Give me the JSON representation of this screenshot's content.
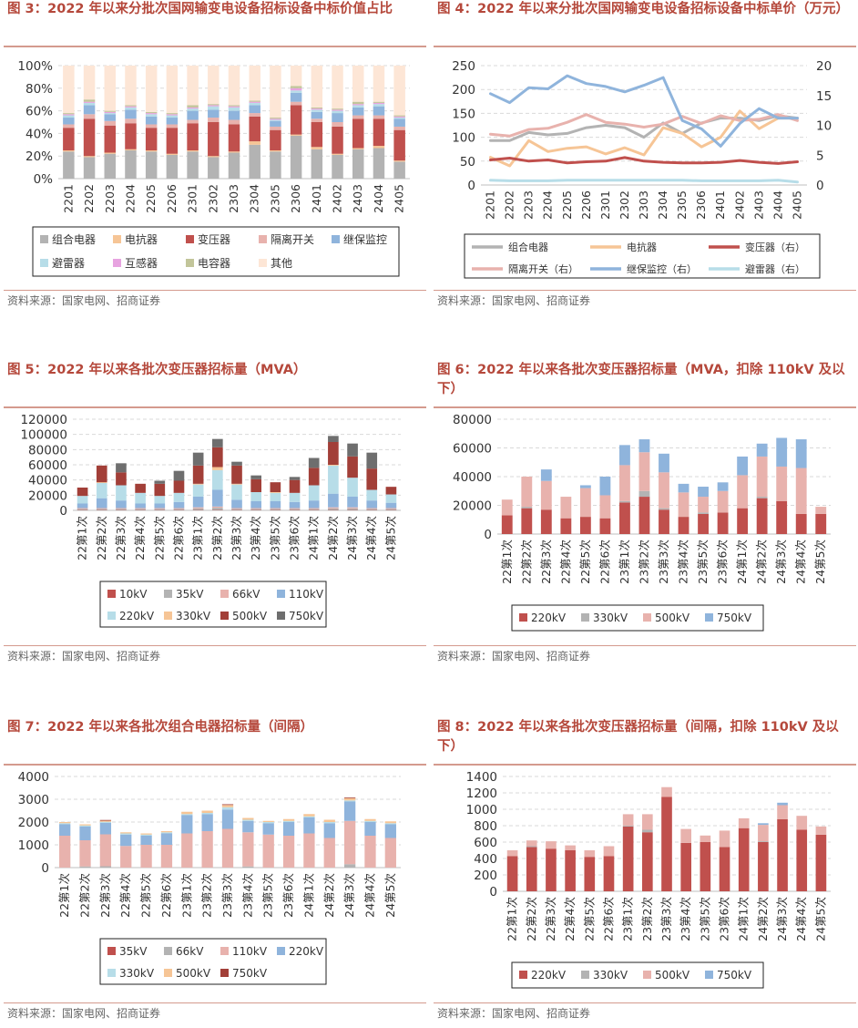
{
  "panels": [
    {
      "id": "fig3",
      "title": "图 3：2022 年以来分批次国网输变电设备招标设备中标价值占比",
      "source": "资料来源：国家电网、招商证券"
    },
    {
      "id": "fig4",
      "title": "图 4：2022 年以来分批次国网输变电设备招标设备中标单价（万元）",
      "source": "资料来源：国家电网、招商证券"
    },
    {
      "id": "fig5",
      "title": "图 5：2022 年以来各批次变压器招标量（MVA）",
      "source": "资料来源：国家电网、招商证券"
    },
    {
      "id": "fig6",
      "title": "图 6：2022 年以来各批次变压器招标量（MVA，扣除 110kV 及以下）",
      "source": "资料来源：国家电网、招商证券"
    },
    {
      "id": "fig7",
      "title": "图 7：2022 年以来各批次组合电器招标量（间隔）",
      "source": "资料来源：国家电网、招商证券"
    },
    {
      "id": "fig8",
      "title": "图 8：2022 年以来各批次变压器招标量（间隔，扣除 110kV 及以下）",
      "source": "资料来源：国家电网、招商证券"
    }
  ],
  "chart_data": [
    {
      "id": "fig3",
      "type": "bar",
      "stacked": true,
      "categories": [
        "2201",
        "2202",
        "2203",
        "2204",
        "2205",
        "2206",
        "2301",
        "2302",
        "2303",
        "2304",
        "2305",
        "2306",
        "2401",
        "2402",
        "2403",
        "2404",
        "2405"
      ],
      "yticks": [
        "0%",
        "20%",
        "40%",
        "60%",
        "80%",
        "100%"
      ],
      "ylim": [
        0,
        100
      ],
      "series": [
        {
          "name": "组合电器",
          "color": "#b3b3b3",
          "values": [
            24,
            19,
            22,
            25,
            24,
            21,
            24,
            19,
            23,
            30,
            24,
            38,
            26,
            21,
            26,
            27,
            15
          ]
        },
        {
          "name": "电抗器",
          "color": "#f6c596",
          "values": [
            1,
            1,
            1,
            1,
            1,
            1,
            1,
            1,
            1,
            3,
            1,
            1,
            2,
            1,
            1,
            2,
            1
          ]
        },
        {
          "name": "变压器",
          "color": "#c0504d",
          "values": [
            20,
            33,
            24,
            23,
            20,
            23,
            24,
            30,
            24,
            22,
            18,
            26,
            22,
            24,
            26,
            24,
            27
          ]
        },
        {
          "name": "隔离开关",
          "color": "#e8b2ad",
          "values": [
            3,
            4,
            4,
            4,
            3,
            3,
            3,
            4,
            4,
            3,
            3,
            3,
            3,
            4,
            3,
            3,
            3
          ]
        },
        {
          "name": "继保监控",
          "color": "#8fb4dc",
          "values": [
            6,
            8,
            6,
            8,
            7,
            6,
            8,
            7,
            8,
            7,
            5,
            8,
            6,
            8,
            7,
            8,
            7
          ]
        },
        {
          "name": "避雷器",
          "color": "#b7dde8",
          "values": [
            2,
            2,
            1,
            2,
            2,
            2,
            2,
            3,
            3,
            2,
            1,
            2,
            2,
            2,
            2,
            2,
            1
          ]
        },
        {
          "name": "互感器",
          "color": "#e7a3e0",
          "values": [
            1,
            1,
            1,
            1,
            1,
            1,
            1,
            1,
            1,
            1,
            1,
            2,
            1,
            1,
            1,
            1,
            1
          ]
        },
        {
          "name": "电容器",
          "color": "#c2c59a",
          "values": [
            1,
            2,
            1,
            1,
            1,
            1,
            2,
            1,
            1,
            1,
            1,
            2,
            1,
            1,
            2,
            1,
            1
          ]
        },
        {
          "name": "其他",
          "color": "#fde6d6",
          "values": [
            42,
            30,
            40,
            35,
            41,
            42,
            35,
            34,
            35,
            31,
            46,
            18,
            37,
            38,
            32,
            32,
            44
          ]
        }
      ]
    },
    {
      "id": "fig4",
      "type": "line",
      "categories": [
        "2201",
        "2202",
        "2203",
        "2204",
        "2205",
        "2206",
        "2301",
        "2302",
        "2303",
        "2304",
        "2305",
        "2306",
        "2401",
        "2402",
        "2403",
        "2404",
        "2405"
      ],
      "yticks_left": [
        "0",
        "50",
        "100",
        "150",
        "200",
        "250"
      ],
      "ylim_left": [
        0,
        250
      ],
      "yticks_right": [
        "0",
        "5",
        "10",
        "15",
        "20"
      ],
      "ylim_right": [
        0,
        20
      ],
      "series": [
        {
          "name": "组合电器",
          "axis": "left",
          "color": "#b3b3b3",
          "values": [
            93,
            93,
            110,
            105,
            108,
            120,
            125,
            120,
            100,
            130,
            108,
            130,
            140,
            140,
            135,
            145,
            140
          ]
        },
        {
          "name": "电抗器",
          "axis": "left",
          "color": "#f6c596",
          "values": [
            58,
            40,
            93,
            70,
            77,
            80,
            65,
            78,
            63,
            120,
            108,
            80,
            100,
            155,
            118,
            140,
            140
          ]
        },
        {
          "name": "变压器（右）",
          "axis": "right",
          "color": "#c0504d",
          "values": [
            4.2,
            4.5,
            4.0,
            4.2,
            3.7,
            3.9,
            4.0,
            4.6,
            4.0,
            3.8,
            3.7,
            3.7,
            3.8,
            4.1,
            3.8,
            3.6,
            3.9
          ]
        },
        {
          "name": "隔离开关（右）",
          "axis": "right",
          "color": "#e8b2ad",
          "values": [
            8.5,
            8.2,
            9.3,
            9.5,
            10.5,
            11.8,
            10.5,
            10.2,
            9.7,
            10.2,
            11.5,
            10.3,
            11.6,
            10.8,
            11.0,
            11.8,
            10.8
          ]
        },
        {
          "name": "继保监控（右）",
          "axis": "right",
          "color": "#8fb4dc",
          "values": [
            15.3,
            13.8,
            16.3,
            16.1,
            18.3,
            17.0,
            16.5,
            15.6,
            16.7,
            18.0,
            10.8,
            9.4,
            6.5,
            10.3,
            12.8,
            11.2,
            11.2
          ]
        },
        {
          "name": "避雷器（右）",
          "axis": "right",
          "color": "#b7dde8",
          "values": [
            0.8,
            0.7,
            0.7,
            0.7,
            0.8,
            0.8,
            0.8,
            0.8,
            0.8,
            0.8,
            0.8,
            0.7,
            0.7,
            0.7,
            0.7,
            0.8,
            0.5
          ]
        }
      ]
    },
    {
      "id": "fig5",
      "type": "bar",
      "stacked": true,
      "categories": [
        "22第1次",
        "22第2次",
        "22第3次",
        "22第4次",
        "22第5次",
        "22第6次",
        "23第1次",
        "23第2次",
        "23第3次",
        "23第4次",
        "23第5次",
        "23第6次",
        "24第1次",
        "24第2次",
        "24第3次",
        "24第4次",
        "24第5次"
      ],
      "yticks": [
        "0",
        "20000",
        "40000",
        "60000",
        "80000",
        "100000",
        "120000"
      ],
      "ylim": [
        0,
        120000
      ],
      "series": [
        {
          "name": "10kV",
          "color": "#c0504d",
          "values": [
            500,
            500,
            500,
            500,
            500,
            500,
            500,
            500,
            500,
            500,
            500,
            500,
            500,
            500,
            500,
            500,
            500
          ]
        },
        {
          "name": "35kV",
          "color": "#b3b3b3",
          "values": [
            1500,
            1500,
            1500,
            1500,
            1500,
            1500,
            2000,
            3000,
            1500,
            1500,
            1500,
            1500,
            1500,
            2000,
            2000,
            1500,
            1500
          ]
        },
        {
          "name": "66kV",
          "color": "#e8b2ad",
          "values": [
            1000,
            1000,
            1000,
            1000,
            1000,
            1000,
            1500,
            1500,
            1000,
            1000,
            1000,
            1000,
            1000,
            1500,
            1500,
            1000,
            1000
          ]
        },
        {
          "name": "110kV",
          "color": "#8fb4dc",
          "values": [
            6000,
            13000,
            10000,
            6000,
            6000,
            8000,
            14000,
            22000,
            11000,
            9000,
            9000,
            8000,
            10000,
            18000,
            14000,
            10000,
            7000
          ]
        },
        {
          "name": "220kV",
          "color": "#b7dde8",
          "values": [
            10000,
            20000,
            20000,
            14000,
            10000,
            12000,
            16000,
            26000,
            20000,
            12000,
            11000,
            12000,
            20000,
            37000,
            25000,
            14000,
            11000
          ]
        },
        {
          "name": "330kV",
          "color": "#f6c596",
          "values": [
            0,
            1000,
            0,
            0,
            0,
            0,
            1000,
            4000,
            1000,
            0,
            1000,
            0,
            0,
            1000,
            0,
            0,
            0
          ]
        },
        {
          "name": "500kV",
          "color": "#a23f38",
          "values": [
            11000,
            22000,
            17000,
            12000,
            16000,
            16000,
            24000,
            26000,
            24000,
            17000,
            13000,
            17000,
            23000,
            30000,
            28000,
            28000,
            10000
          ]
        },
        {
          "name": "750kV",
          "color": "#6e6e6e",
          "values": [
            0,
            0,
            12000,
            0,
            4000,
            13000,
            17000,
            11000,
            5000,
            5000,
            0,
            4000,
            13000,
            8000,
            17000,
            21000,
            0
          ]
        }
      ]
    },
    {
      "id": "fig6",
      "type": "bar",
      "stacked": true,
      "categories": [
        "22第1次",
        "22第2次",
        "22第3次",
        "22第4次",
        "22第5次",
        "22第6次",
        "23第1次",
        "23第2次",
        "23第3次",
        "23第4次",
        "23第5次",
        "23第6次",
        "24第1次",
        "24第2次",
        "24第3次",
        "24第4次",
        "24第5次"
      ],
      "yticks": [
        "0",
        "20000",
        "40000",
        "60000",
        "80000"
      ],
      "ylim": [
        0,
        80000
      ],
      "series": [
        {
          "name": "220kV",
          "color": "#c0504d",
          "values": [
            13000,
            18000,
            17000,
            11000,
            12000,
            11000,
            22000,
            26000,
            17000,
            12000,
            14000,
            15000,
            18000,
            25000,
            23000,
            14000,
            14000
          ]
        },
        {
          "name": "330kV",
          "color": "#b3b3b3",
          "values": [
            0,
            1000,
            0,
            0,
            0,
            0,
            1000,
            4000,
            1000,
            0,
            1000,
            0,
            0,
            1000,
            0,
            0,
            0
          ]
        },
        {
          "name": "500kV",
          "color": "#e8b2ad",
          "values": [
            11000,
            21000,
            20000,
            15000,
            20000,
            16000,
            25000,
            27000,
            25000,
            17000,
            11000,
            15000,
            23000,
            28000,
            24000,
            32000,
            5000
          ]
        },
        {
          "name": "750kV",
          "color": "#8fb4dc",
          "values": [
            0,
            0,
            8000,
            0,
            2000,
            13000,
            14000,
            9000,
            13000,
            6000,
            7000,
            6000,
            13000,
            9000,
            20000,
            20000,
            0
          ]
        }
      ]
    },
    {
      "id": "fig7",
      "type": "bar",
      "stacked": true,
      "categories": [
        "22第1次",
        "22第2次",
        "22第3次",
        "22第4次",
        "22第5次",
        "22第6次",
        "23第1次",
        "23第2次",
        "23第3次",
        "23第4次",
        "23第5次",
        "23第6次",
        "24第1次",
        "24第2次",
        "24第3次",
        "24第4次",
        "24第5次"
      ],
      "yticks": [
        "0",
        "1000",
        "2000",
        "3000",
        "4000"
      ],
      "ylim": [
        0,
        4000
      ],
      "series": [
        {
          "name": "35kV",
          "color": "#c0504d",
          "values": [
            0,
            0,
            0,
            0,
            0,
            0,
            0,
            0,
            0,
            0,
            0,
            0,
            0,
            0,
            0,
            0,
            0
          ]
        },
        {
          "name": "66kV",
          "color": "#b3b3b3",
          "values": [
            0,
            50,
            60,
            0,
            0,
            0,
            0,
            0,
            0,
            50,
            0,
            0,
            0,
            0,
            150,
            0,
            0
          ]
        },
        {
          "name": "110kV",
          "color": "#e8b2ad",
          "values": [
            1400,
            1150,
            1400,
            950,
            1000,
            1000,
            1500,
            1600,
            1700,
            1500,
            1450,
            1400,
            1500,
            1300,
            1900,
            1400,
            1300
          ]
        },
        {
          "name": "220kV",
          "color": "#8fb4dc",
          "values": [
            500,
            600,
            500,
            500,
            400,
            500,
            800,
            750,
            850,
            500,
            500,
            600,
            700,
            650,
            850,
            600,
            600
          ]
        },
        {
          "name": "330kV",
          "color": "#b7dde8",
          "values": [
            50,
            50,
            50,
            50,
            50,
            50,
            50,
            50,
            100,
            50,
            50,
            50,
            50,
            50,
            50,
            50,
            50
          ]
        },
        {
          "name": "500kV",
          "color": "#f6c596",
          "values": [
            50,
            50,
            50,
            50,
            50,
            50,
            100,
            100,
            100,
            80,
            50,
            80,
            100,
            100,
            100,
            80,
            80
          ]
        },
        {
          "name": "750kV",
          "color": "#a23f38",
          "values": [
            0,
            0,
            30,
            0,
            0,
            0,
            0,
            0,
            30,
            0,
            0,
            0,
            0,
            0,
            30,
            0,
            0
          ]
        }
      ]
    },
    {
      "id": "fig8",
      "type": "bar",
      "stacked": true,
      "categories": [
        "22第1次",
        "22第2次",
        "22第3次",
        "22第4次",
        "22第5次",
        "22第6次",
        "23第1次",
        "23第2次",
        "23第3次",
        "23第4次",
        "23第5次",
        "23第6次",
        "24第1次",
        "24第2次",
        "24第3次",
        "24第4次",
        "24第5次"
      ],
      "yticks": [
        "0",
        "200",
        "400",
        "600",
        "800",
        "1000",
        "1200",
        "1400"
      ],
      "ylim": [
        0,
        1400
      ],
      "series": [
        {
          "name": "220kV",
          "color": "#c0504d",
          "values": [
            430,
            540,
            520,
            500,
            420,
            430,
            790,
            720,
            1150,
            590,
            600,
            540,
            770,
            600,
            880,
            750,
            690
          ]
        },
        {
          "name": "330kV",
          "color": "#b3b3b3",
          "values": [
            0,
            10,
            0,
            0,
            0,
            0,
            10,
            30,
            0,
            0,
            0,
            0,
            0,
            10,
            0,
            0,
            0
          ]
        },
        {
          "name": "500kV",
          "color": "#e8b2ad",
          "values": [
            70,
            70,
            90,
            60,
            80,
            120,
            140,
            190,
            120,
            170,
            80,
            200,
            120,
            200,
            170,
            170,
            100
          ]
        },
        {
          "name": "750kV",
          "color": "#8fb4dc",
          "values": [
            0,
            0,
            0,
            0,
            0,
            0,
            0,
            0,
            0,
            0,
            0,
            0,
            0,
            20,
            30,
            0,
            0
          ]
        }
      ]
    }
  ]
}
